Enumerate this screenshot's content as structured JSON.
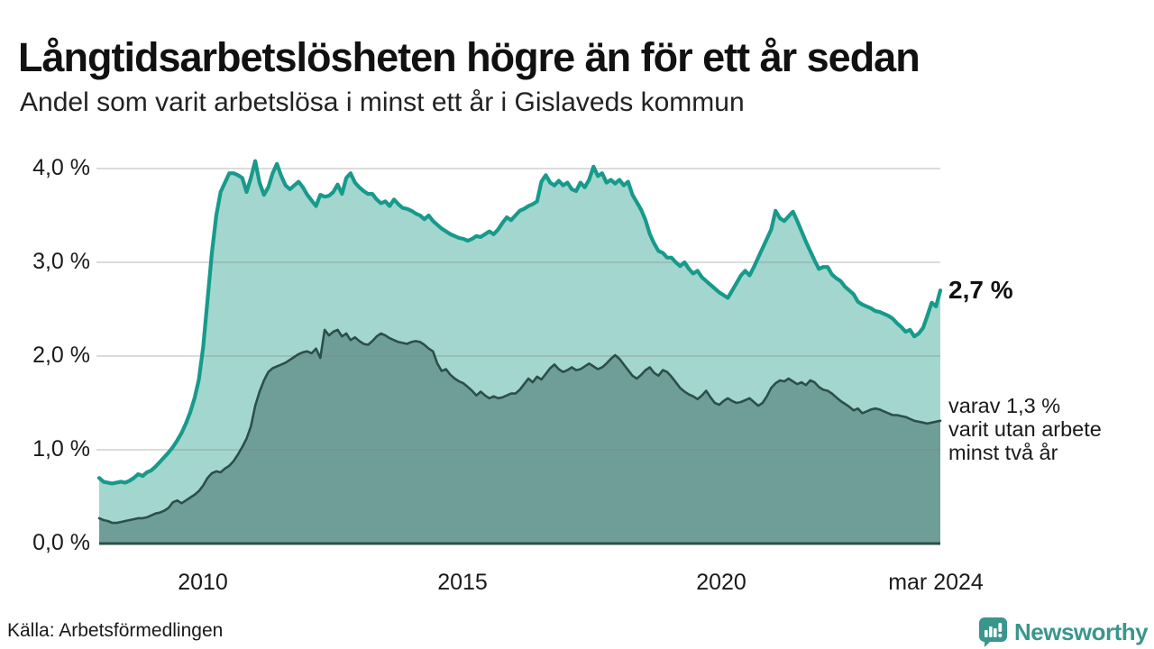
{
  "header": {
    "title": "Långtidsarbetslösheten högre än för ett år sedan",
    "subtitle": "Andel som varit arbetslösa i minst ett år i Gislaveds kommun"
  },
  "chart_data": {
    "type": "area",
    "title": "Långtidsarbetslösheten högre än för ett år sedan",
    "subtitle": "Andel som varit arbetslösa i minst ett år i Gislaveds kommun",
    "unit": "%",
    "frequency": "monthly",
    "x_start": "jan 2008",
    "x_end": "mar 2024",
    "ylim": [
      0,
      4.3
    ],
    "grid": "horizontal",
    "y_tick_labels": [
      "0,0 %",
      "1,0 %",
      "2,0 %",
      "3,0 %",
      "4,0 %"
    ],
    "x_tick_labels": [
      "2010",
      "2015",
      "2020",
      "mar 2024"
    ],
    "series": [
      {
        "name": "Arbetslösa minst ett år",
        "line_color": "#179a8b",
        "fill_color": "#a3d6ce",
        "end_value": 2.7,
        "values": [
          0.7,
          0.66,
          0.65,
          0.64,
          0.65,
          0.66,
          0.65,
          0.67,
          0.7,
          0.74,
          0.72,
          0.76,
          0.78,
          0.82,
          0.87,
          0.92,
          0.97,
          1.03,
          1.1,
          1.18,
          1.28,
          1.4,
          1.55,
          1.75,
          2.1,
          2.6,
          3.1,
          3.5,
          3.75,
          3.85,
          3.95,
          3.95,
          3.93,
          3.9,
          3.75,
          3.9,
          4.08,
          3.85,
          3.72,
          3.8,
          3.95,
          4.05,
          3.92,
          3.82,
          3.78,
          3.82,
          3.86,
          3.8,
          3.72,
          3.66,
          3.6,
          3.72,
          3.7,
          3.71,
          3.75,
          3.83,
          3.73,
          3.9,
          3.95,
          3.85,
          3.8,
          3.76,
          3.73,
          3.73,
          3.67,
          3.63,
          3.65,
          3.6,
          3.67,
          3.62,
          3.58,
          3.57,
          3.55,
          3.52,
          3.5,
          3.46,
          3.5,
          3.44,
          3.4,
          3.36,
          3.33,
          3.3,
          3.28,
          3.26,
          3.25,
          3.23,
          3.25,
          3.28,
          3.27,
          3.3,
          3.33,
          3.3,
          3.35,
          3.42,
          3.48,
          3.45,
          3.5,
          3.55,
          3.57,
          3.6,
          3.62,
          3.65,
          3.86,
          3.93,
          3.85,
          3.82,
          3.87,
          3.82,
          3.85,
          3.78,
          3.76,
          3.85,
          3.8,
          3.88,
          4.02,
          3.92,
          3.95,
          3.85,
          3.88,
          3.84,
          3.88,
          3.82,
          3.86,
          3.72,
          3.64,
          3.56,
          3.45,
          3.3,
          3.2,
          3.12,
          3.1,
          3.05,
          3.05,
          3.0,
          2.96,
          3.0,
          2.93,
          2.88,
          2.91,
          2.84,
          2.8,
          2.76,
          2.72,
          2.68,
          2.65,
          2.62,
          2.7,
          2.78,
          2.86,
          2.91,
          2.86,
          2.95,
          3.05,
          3.15,
          3.25,
          3.35,
          3.55,
          3.47,
          3.44,
          3.49,
          3.54,
          3.44,
          3.33,
          3.22,
          3.12,
          3.02,
          2.93,
          2.95,
          2.95,
          2.87,
          2.83,
          2.8,
          2.74,
          2.7,
          2.66,
          2.58,
          2.55,
          2.53,
          2.51,
          2.48,
          2.47,
          2.45,
          2.43,
          2.4,
          2.35,
          2.31,
          2.26,
          2.28,
          2.21,
          2.24,
          2.3,
          2.43,
          2.57,
          2.53,
          2.7
        ]
      },
      {
        "name": "Arbetslösa minst två år",
        "line_color": "#2c4f4b",
        "fill_color": "#6f9e99",
        "end_value": 1.3,
        "values": [
          0.27,
          0.25,
          0.24,
          0.22,
          0.22,
          0.23,
          0.24,
          0.25,
          0.26,
          0.27,
          0.27,
          0.28,
          0.3,
          0.32,
          0.33,
          0.35,
          0.38,
          0.44,
          0.46,
          0.43,
          0.46,
          0.49,
          0.52,
          0.56,
          0.62,
          0.7,
          0.75,
          0.77,
          0.76,
          0.8,
          0.83,
          0.88,
          0.95,
          1.03,
          1.12,
          1.25,
          1.47,
          1.62,
          1.74,
          1.83,
          1.87,
          1.89,
          1.91,
          1.93,
          1.96,
          1.99,
          2.02,
          2.04,
          2.05,
          2.03,
          2.08,
          1.98,
          2.28,
          2.22,
          2.26,
          2.28,
          2.21,
          2.24,
          2.17,
          2.2,
          2.16,
          2.13,
          2.12,
          2.16,
          2.21,
          2.24,
          2.22,
          2.19,
          2.17,
          2.15,
          2.14,
          2.13,
          2.15,
          2.16,
          2.15,
          2.12,
          2.08,
          2.05,
          1.92,
          1.84,
          1.86,
          1.8,
          1.76,
          1.73,
          1.71,
          1.67,
          1.63,
          1.58,
          1.62,
          1.58,
          1.55,
          1.57,
          1.55,
          1.56,
          1.58,
          1.6,
          1.6,
          1.64,
          1.7,
          1.76,
          1.72,
          1.78,
          1.75,
          1.81,
          1.87,
          1.91,
          1.86,
          1.83,
          1.85,
          1.88,
          1.85,
          1.86,
          1.89,
          1.92,
          1.89,
          1.86,
          1.88,
          1.92,
          1.97,
          2.01,
          1.97,
          1.91,
          1.85,
          1.79,
          1.76,
          1.8,
          1.85,
          1.88,
          1.82,
          1.79,
          1.85,
          1.83,
          1.78,
          1.72,
          1.66,
          1.62,
          1.59,
          1.57,
          1.54,
          1.58,
          1.63,
          1.56,
          1.5,
          1.48,
          1.52,
          1.55,
          1.52,
          1.5,
          1.51,
          1.53,
          1.55,
          1.51,
          1.47,
          1.5,
          1.57,
          1.66,
          1.71,
          1.74,
          1.73,
          1.76,
          1.73,
          1.7,
          1.72,
          1.69,
          1.74,
          1.72,
          1.67,
          1.64,
          1.63,
          1.6,
          1.56,
          1.52,
          1.49,
          1.46,
          1.42,
          1.44,
          1.39,
          1.41,
          1.43,
          1.44,
          1.43,
          1.41,
          1.39,
          1.37,
          1.37,
          1.36,
          1.35,
          1.33,
          1.31,
          1.3,
          1.29,
          1.28,
          1.29,
          1.3,
          1.31
        ]
      }
    ],
    "annotations": {
      "end_value_label": "2,7 %",
      "secondary_line1": "varav 1,3 %",
      "secondary_line2": "varit utan arbete",
      "secondary_line3": "minst två år"
    }
  },
  "footer": {
    "source": "Källa: Arbetsförmedlingen",
    "brand_name": "Newsworthy"
  },
  "colors": {
    "line_1yr": "#179a8b",
    "fill_1yr": "#a3d6ce",
    "line_2yr": "#2c4f4b",
    "fill_2yr": "#6f9e99",
    "gridline": "#dedede",
    "brand_teal": "#3a968c",
    "text": "#1a1a1a"
  }
}
